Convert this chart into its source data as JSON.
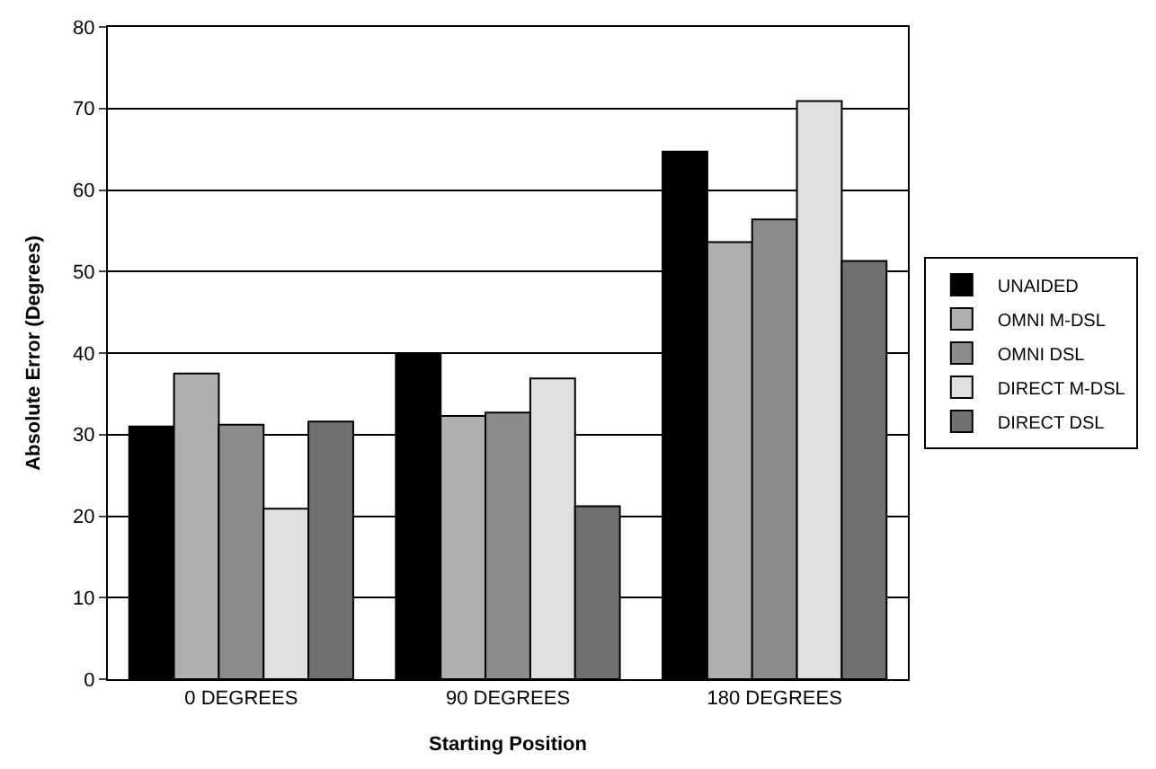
{
  "chart_data": {
    "type": "bar",
    "xlabel": "Starting Position",
    "ylabel": "Absolute Error (Degrees)",
    "categories": [
      "0 DEGREES",
      "90 DEGREES",
      "180 DEGREES"
    ],
    "series": [
      {
        "name": "UNAIDED",
        "color": "#000000",
        "values": [
          31.0,
          39.8,
          64.7
        ]
      },
      {
        "name": "OMNI M-DSL",
        "color": "#b0b0b0",
        "values": [
          37.5,
          32.3,
          53.6
        ]
      },
      {
        "name": "OMNI DSL",
        "color": "#8c8c8c",
        "values": [
          31.2,
          32.7,
          56.4
        ]
      },
      {
        "name": "DIRECT M-DSL",
        "color": "#e0e0e0",
        "values": [
          20.9,
          36.9,
          70.9
        ]
      },
      {
        "name": "DIRECT DSL",
        "color": "#707070",
        "values": [
          31.6,
          21.2,
          51.3
        ]
      }
    ],
    "ylim": [
      0,
      80
    ],
    "yticks": [
      0,
      10,
      20,
      30,
      40,
      50,
      60,
      70,
      80
    ],
    "grid": "y",
    "legend": "right"
  }
}
